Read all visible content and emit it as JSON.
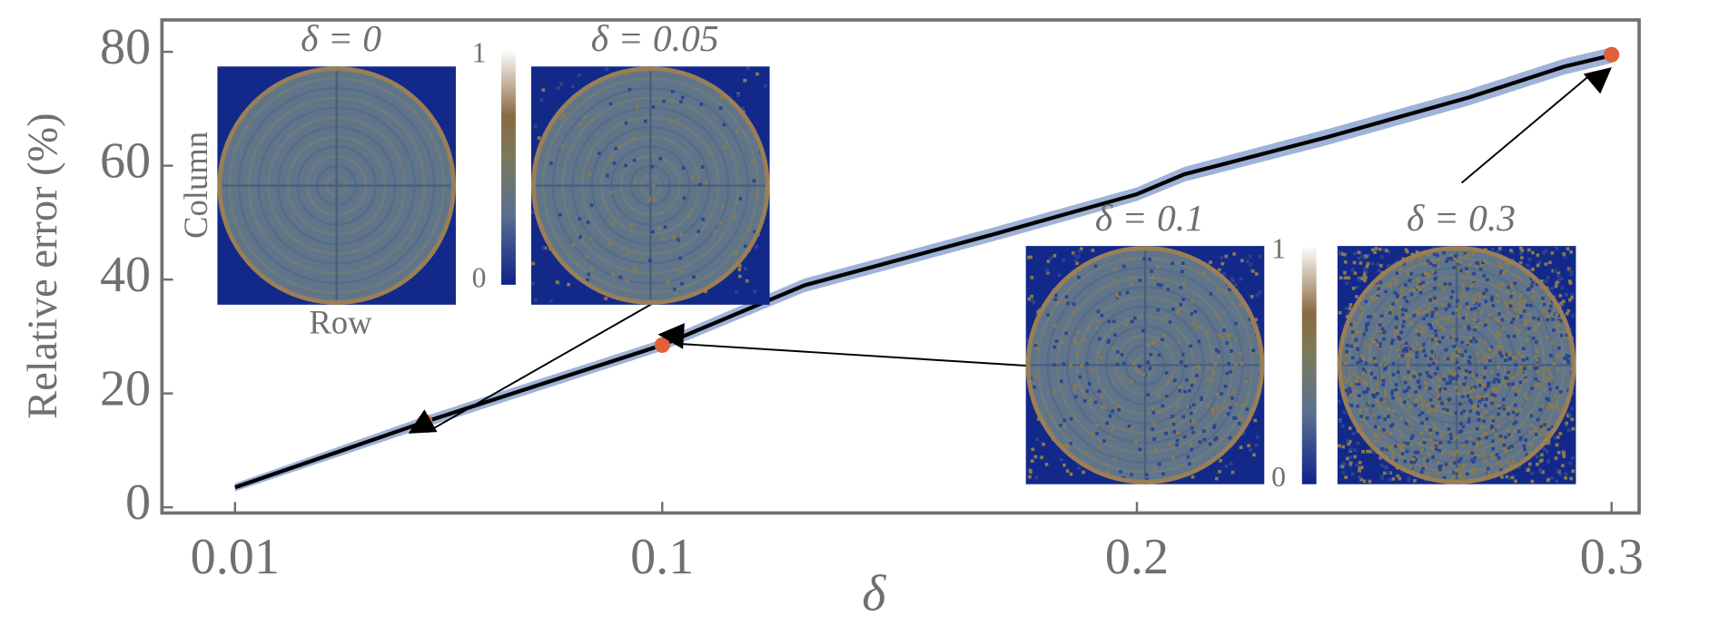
{
  "chart_data": {
    "type": "line",
    "x_label": "δ",
    "y_label": "Relative error (%)",
    "x": [
      0.01,
      0.05,
      0.1,
      0.13,
      0.17,
      0.2,
      0.21,
      0.24,
      0.27,
      0.29,
      0.3
    ],
    "series": [
      {
        "color": "#000000",
        "band_color": "#9fb3d8",
        "values": [
          3.5,
          15,
          28.5,
          39,
          48,
          55,
          58.5,
          65,
          72,
          77.4,
          79.4
        ],
        "lower": [
          2.8,
          14,
          27.5,
          37.8,
          46.8,
          53.8,
          57.2,
          63.6,
          70.6,
          76,
          78
        ],
        "upper": [
          4.2,
          16,
          29.5,
          40.2,
          49.2,
          56.2,
          59.8,
          66.4,
          73.4,
          78.8,
          80.8
        ]
      }
    ],
    "markers": {
      "color": "#e0603a",
      "x": [
        0.05,
        0.1,
        0.3
      ],
      "values": [
        15,
        28.5,
        79.5
      ]
    },
    "xlim": [
      -0.0054,
      0.3058
    ],
    "ylim": [
      -1,
      85.6
    ],
    "xticks": [
      0.01,
      0.1,
      0.2,
      0.3
    ],
    "yticks": [
      0,
      20,
      40,
      60,
      80
    ],
    "insets": [
      {
        "title": "δ = 0"
      },
      {
        "title": "δ = 0.05"
      },
      {
        "title": "δ = 0.1"
      },
      {
        "title": "δ = 0.3"
      }
    ],
    "inset_x_label": "Row",
    "inset_y_label": "Column",
    "colorbar_ticks": [
      0,
      1
    ]
  }
}
